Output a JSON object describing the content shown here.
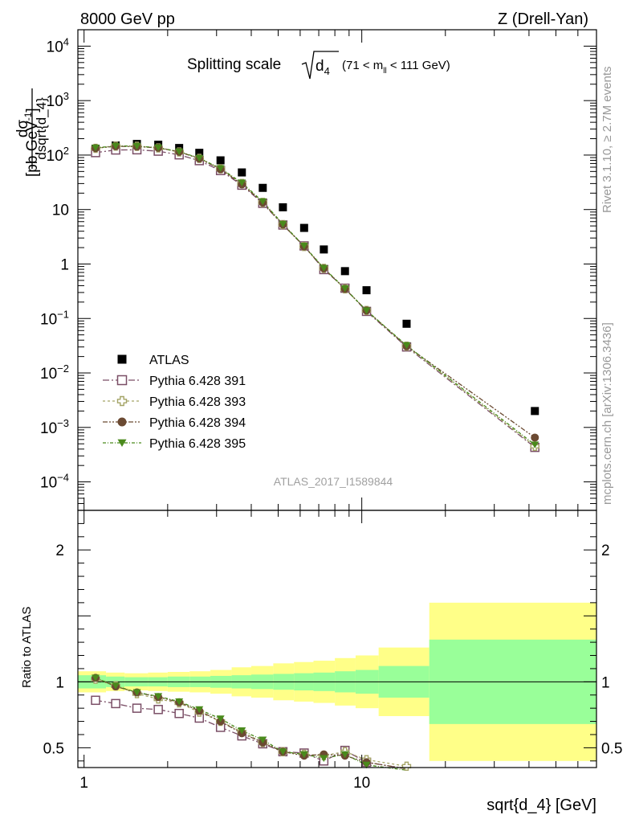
{
  "header": {
    "left": "8000 GeV pp",
    "right": "Z (Drell-Yan)"
  },
  "title": {
    "main": "Splitting scale",
    "sym": "d",
    "sub": "4",
    "range": "(71 < m",
    "range_sub": "ll",
    "range_end": " < 111 GeV)"
  },
  "ylabel_main": {
    "num": "dσ",
    "den": "dsqrt{d_4}",
    "unit": "[pb,GeV",
    "unit_sup": "-1",
    "unit_end": "]"
  },
  "ylabel_ratio": "Ratio to ATLAS",
  "xlabel": "sqrt{d_4} [GeV]",
  "side_top": "Rivet 3.1.10, ≥ 2.7M events",
  "side_bottom": "mcplots.cern.ch [arXiv:1306.3436]",
  "analysis": "ATLAS_2017_I1589844",
  "tick_labels": {
    "main_y": [
      {
        "v": 10000,
        "base": "10",
        "exp": "4"
      },
      {
        "v": 1000,
        "base": "10",
        "exp": "3"
      },
      {
        "v": 100,
        "base": "10",
        "exp": "2"
      },
      {
        "v": 10,
        "base": "10",
        "exp": ""
      },
      {
        "v": 1,
        "base": "1",
        "exp": ""
      },
      {
        "v": 0.1,
        "base": "10",
        "exp": "−1"
      },
      {
        "v": 0.01,
        "base": "10",
        "exp": "−2"
      },
      {
        "v": 0.001,
        "base": "10",
        "exp": "−3"
      },
      {
        "v": 0.0001,
        "base": "10",
        "exp": "−4"
      }
    ],
    "ratio_y": [
      {
        "v": 2,
        "label": "2"
      },
      {
        "v": 1,
        "label": "1"
      },
      {
        "v": 0.5,
        "label": "0.5"
      }
    ],
    "x": [
      {
        "v": 1,
        "label": "1"
      },
      {
        "v": 10,
        "label": "10"
      }
    ]
  },
  "chart_data": {
    "type": "scatter",
    "x_scale": "log",
    "y_scale_main": "log",
    "xlim": [
      0.95,
      70
    ],
    "ylim_main": [
      3e-05,
      20000
    ],
    "ylim_ratio": [
      0.35,
      2.3
    ],
    "legend_position": "bottom-left",
    "x": [
      1.1,
      1.3,
      1.55,
      1.85,
      2.2,
      2.6,
      3.1,
      3.7,
      4.4,
      5.2,
      6.2,
      7.3,
      8.7,
      10.4,
      14.5,
      42
    ],
    "series": [
      {
        "name": "ATLAS",
        "color": "#000000",
        "marker": "square-filled",
        "values": [
          130,
          150,
          160,
          155,
          135,
          110,
          80,
          48,
          25,
          11,
          4.6,
          1.85,
          0.74,
          0.33,
          0.08,
          0.002
        ]
      },
      {
        "name": "Pythia 6.428 391",
        "color": "#7a4e66",
        "marker": "square-open",
        "values": [
          111,
          124,
          125,
          118,
          101,
          79,
          52,
          28,
          13,
          5.2,
          2.15,
          0.79,
          0.36,
          0.135,
          0.03,
          0.00043
        ],
        "ratio": [
          0.86,
          0.835,
          0.8,
          0.79,
          0.76,
          0.725,
          0.655,
          0.59,
          0.53,
          0.47,
          0.46,
          0.4,
          0.48,
          0.39,
          0.34
        ]
      },
      {
        "name": "Pythia 6.428 393",
        "color": "#a4a466",
        "marker": "cross-open",
        "values": [
          133,
          146,
          145,
          135,
          114,
          87,
          56,
          30,
          13.5,
          5.3,
          2.1,
          0.83,
          0.35,
          0.14,
          0.031,
          0.00045
        ],
        "ratio": [
          1.02,
          0.97,
          0.91,
          0.87,
          0.84,
          0.77,
          0.7,
          0.62,
          0.54,
          0.47,
          0.45,
          0.44,
          0.47,
          0.41,
          0.36
        ]
      },
      {
        "name": "Pythia 6.428 394",
        "color": "#6b4a32",
        "marker": "circle-filled",
        "values": [
          134,
          145,
          143,
          136,
          115,
          86,
          55,
          29,
          13.4,
          5.3,
          2.1,
          0.83,
          0.35,
          0.14,
          0.031,
          0.00065
        ],
        "ratio": [
          1.03,
          0.965,
          0.92,
          0.885,
          0.845,
          0.78,
          0.7,
          0.61,
          0.54,
          0.47,
          0.44,
          0.45,
          0.44,
          0.39,
          0.34
        ]
      },
      {
        "name": "Pythia 6.428 395",
        "color": "#4a8a1c",
        "marker": "triangle-down-filled",
        "values": [
          136,
          147,
          146,
          137,
          116,
          88,
          57,
          31,
          14,
          5.4,
          2.15,
          0.84,
          0.355,
          0.14,
          0.032,
          0.00048
        ],
        "ratio": [
          1.03,
          0.97,
          0.92,
          0.89,
          0.85,
          0.79,
          0.72,
          0.63,
          0.56,
          0.47,
          0.45,
          0.42,
          0.45,
          0.37,
          0.33
        ]
      }
    ],
    "ratio_bands": {
      "edges": [
        0.95,
        1.2,
        1.4,
        1.7,
        2.0,
        2.4,
        2.85,
        3.4,
        4.0,
        4.8,
        5.7,
        6.7,
        8.0,
        9.5,
        11.5,
        17.5,
        70
      ],
      "inner": [
        0.05,
        0.04,
        0.035,
        0.035,
        0.04,
        0.04,
        0.045,
        0.05,
        0.055,
        0.06,
        0.065,
        0.07,
        0.08,
        0.09,
        0.12,
        0.32
      ],
      "outer": [
        0.08,
        0.07,
        0.065,
        0.07,
        0.075,
        0.08,
        0.09,
        0.11,
        0.12,
        0.14,
        0.15,
        0.16,
        0.18,
        0.2,
        0.26,
        0.6
      ]
    }
  }
}
